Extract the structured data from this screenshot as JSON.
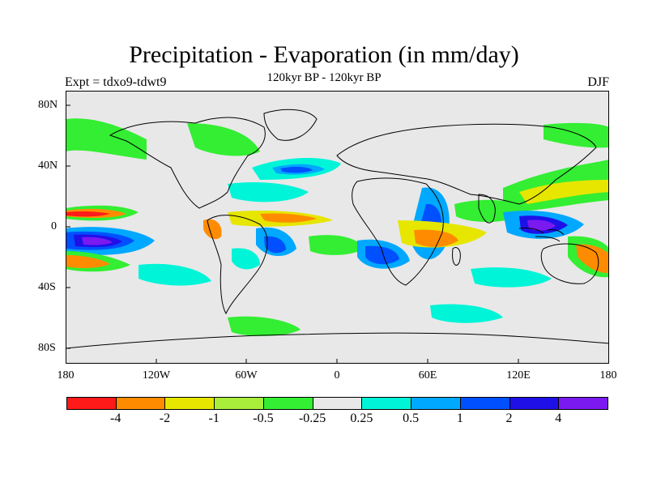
{
  "title": "Precipitation - Evaporation (in mm/day)",
  "subtitle": "120kyr BP - 120kyr BP",
  "expt": "Expt = tdxo9-tdwt9",
  "season": "DJF",
  "map": {
    "lat_labels": [
      "80N",
      "40N",
      "0",
      "40S",
      "80S"
    ],
    "lon_labels": [
      "180",
      "120W",
      "60W",
      "0",
      "60E",
      "120E",
      "180"
    ],
    "background_color": "#e8e8e8"
  },
  "colorbar": {
    "colors": [
      "#ff1a1a",
      "#ff8c00",
      "#e6e600",
      "#a8ee3a",
      "#33ee33",
      "#e8e8e8",
      "#00f5d8",
      "#00a8ff",
      "#0050ff",
      "#2010e8",
      "#7a1af0"
    ],
    "labels": [
      "-4",
      "-2",
      "-1",
      "-0.5",
      "-0.25",
      "0.25",
      "0.5",
      "1",
      "2",
      "4"
    ]
  }
}
